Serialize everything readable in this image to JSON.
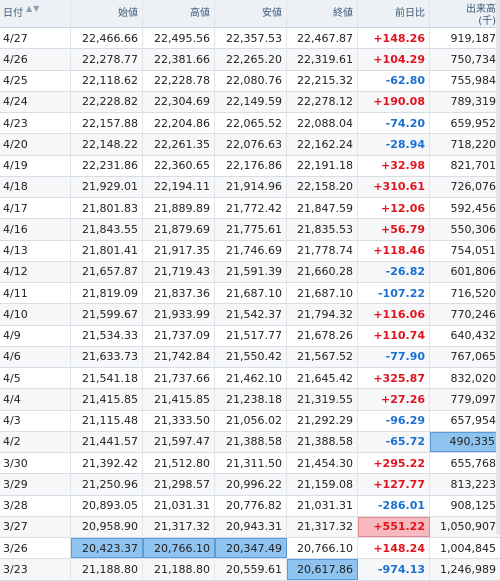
{
  "headers": {
    "date": "日付",
    "sort_icon": "▲▼",
    "open": "始値",
    "high": "高値",
    "low": "安値",
    "close": "終値",
    "change": "前日比",
    "volume": "出来高",
    "volume_unit": "(千)"
  },
  "colors": {
    "positive": "#e0141e",
    "negative": "#1a6fd1",
    "highlight_blue": "#8fc3ef",
    "highlight_red": "#f6b9bd"
  },
  "rows": [
    {
      "date": "4/27",
      "open": "22,466.66",
      "high": "22,495.56",
      "low": "22,357.53",
      "close": "22,467.87",
      "change": "+148.26",
      "volume": "919,187"
    },
    {
      "date": "4/26",
      "open": "22,278.77",
      "high": "22,381.66",
      "low": "22,265.20",
      "close": "22,319.61",
      "change": "+104.29",
      "volume": "750,734"
    },
    {
      "date": "4/25",
      "open": "22,118.62",
      "high": "22,228.78",
      "low": "22,080.76",
      "close": "22,215.32",
      "change": "-62.80",
      "volume": "755,984"
    },
    {
      "date": "4/24",
      "open": "22,228.82",
      "high": "22,304.69",
      "low": "22,149.59",
      "close": "22,278.12",
      "change": "+190.08",
      "volume": "789,319"
    },
    {
      "date": "4/23",
      "open": "22,157.88",
      "high": "22,204.86",
      "low": "22,065.52",
      "close": "22,088.04",
      "change": "-74.20",
      "volume": "659,952"
    },
    {
      "date": "4/20",
      "open": "22,148.22",
      "high": "22,261.35",
      "low": "22,076.63",
      "close": "22,162.24",
      "change": "-28.94",
      "volume": "718,220"
    },
    {
      "date": "4/19",
      "open": "22,231.86",
      "high": "22,360.65",
      "low": "22,176.86",
      "close": "22,191.18",
      "change": "+32.98",
      "volume": "821,701"
    },
    {
      "date": "4/18",
      "open": "21,929.01",
      "high": "22,194.11",
      "low": "21,914.96",
      "close": "22,158.20",
      "change": "+310.61",
      "volume": "726,076"
    },
    {
      "date": "4/17",
      "open": "21,801.83",
      "high": "21,889.89",
      "low": "21,772.42",
      "close": "21,847.59",
      "change": "+12.06",
      "volume": "592,456"
    },
    {
      "date": "4/16",
      "open": "21,843.55",
      "high": "21,879.69",
      "low": "21,775.61",
      "close": "21,835.53",
      "change": "+56.79",
      "volume": "550,306"
    },
    {
      "date": "4/13",
      "open": "21,801.41",
      "high": "21,917.35",
      "low": "21,746.69",
      "close": "21,778.74",
      "change": "+118.46",
      "volume": "754,051"
    },
    {
      "date": "4/12",
      "open": "21,657.87",
      "high": "21,719.43",
      "low": "21,591.39",
      "close": "21,660.28",
      "change": "-26.82",
      "volume": "601,806"
    },
    {
      "date": "4/11",
      "open": "21,819.09",
      "high": "21,837.36",
      "low": "21,687.10",
      "close": "21,687.10",
      "change": "-107.22",
      "volume": "716,520"
    },
    {
      "date": "4/10",
      "open": "21,599.67",
      "high": "21,933.99",
      "low": "21,542.37",
      "close": "21,794.32",
      "change": "+116.06",
      "volume": "770,246"
    },
    {
      "date": "4/9",
      "open": "21,534.33",
      "high": "21,737.09",
      "low": "21,517.77",
      "close": "21,678.26",
      "change": "+110.74",
      "volume": "640,432"
    },
    {
      "date": "4/6",
      "open": "21,633.73",
      "high": "21,742.84",
      "low": "21,550.42",
      "close": "21,567.52",
      "change": "-77.90",
      "volume": "767,065"
    },
    {
      "date": "4/5",
      "open": "21,541.18",
      "high": "21,737.66",
      "low": "21,462.10",
      "close": "21,645.42",
      "change": "+325.87",
      "volume": "832,020"
    },
    {
      "date": "4/4",
      "open": "21,415.85",
      "high": "21,415.85",
      "low": "21,238.18",
      "close": "21,319.55",
      "change": "+27.26",
      "volume": "779,097"
    },
    {
      "date": "4/3",
      "open": "21,115.48",
      "high": "21,333.50",
      "low": "21,056.02",
      "close": "21,292.29",
      "change": "-96.29",
      "volume": "657,954"
    },
    {
      "date": "4/2",
      "open": "21,441.57",
      "high": "21,597.47",
      "low": "21,388.58",
      "close": "21,388.58",
      "change": "-65.72",
      "volume": "490,335",
      "hl": {
        "volume": "blue"
      }
    },
    {
      "date": "3/30",
      "open": "21,392.42",
      "high": "21,512.80",
      "low": "21,311.50",
      "close": "21,454.30",
      "change": "+295.22",
      "volume": "655,768"
    },
    {
      "date": "3/29",
      "open": "21,250.96",
      "high": "21,298.57",
      "low": "20,996.22",
      "close": "21,159.08",
      "change": "+127.77",
      "volume": "813,223"
    },
    {
      "date": "3/28",
      "open": "20,893.05",
      "high": "21,031.31",
      "low": "20,776.82",
      "close": "21,031.31",
      "change": "-286.01",
      "volume": "908,125"
    },
    {
      "date": "3/27",
      "open": "20,958.90",
      "high": "21,317.32",
      "low": "20,943.31",
      "close": "21,317.32",
      "change": "+551.22",
      "volume": "1,050,907",
      "hl": {
        "change": "red"
      }
    },
    {
      "date": "3/26",
      "open": "20,423.37",
      "high": "20,766.10",
      "low": "20,347.49",
      "close": "20,766.10",
      "change": "+148.24",
      "volume": "1,004,845",
      "hl": {
        "open": "blue",
        "high": "blue",
        "low": "blue"
      }
    },
    {
      "date": "3/23",
      "open": "21,188.80",
      "high": "21,188.80",
      "low": "20,559.61",
      "close": "20,617.86",
      "change": "-974.13",
      "volume": "1,246,989",
      "hl": {
        "close": "blue"
      }
    }
  ]
}
